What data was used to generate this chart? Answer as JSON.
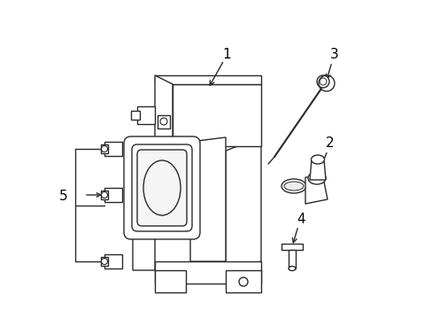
{
  "bg_color": "#ffffff",
  "line_color": "#2a2a2a",
  "label_color": "#000000",
  "figsize": [
    4.89,
    3.6
  ],
  "dpi": 100,
  "lw": 1.0
}
